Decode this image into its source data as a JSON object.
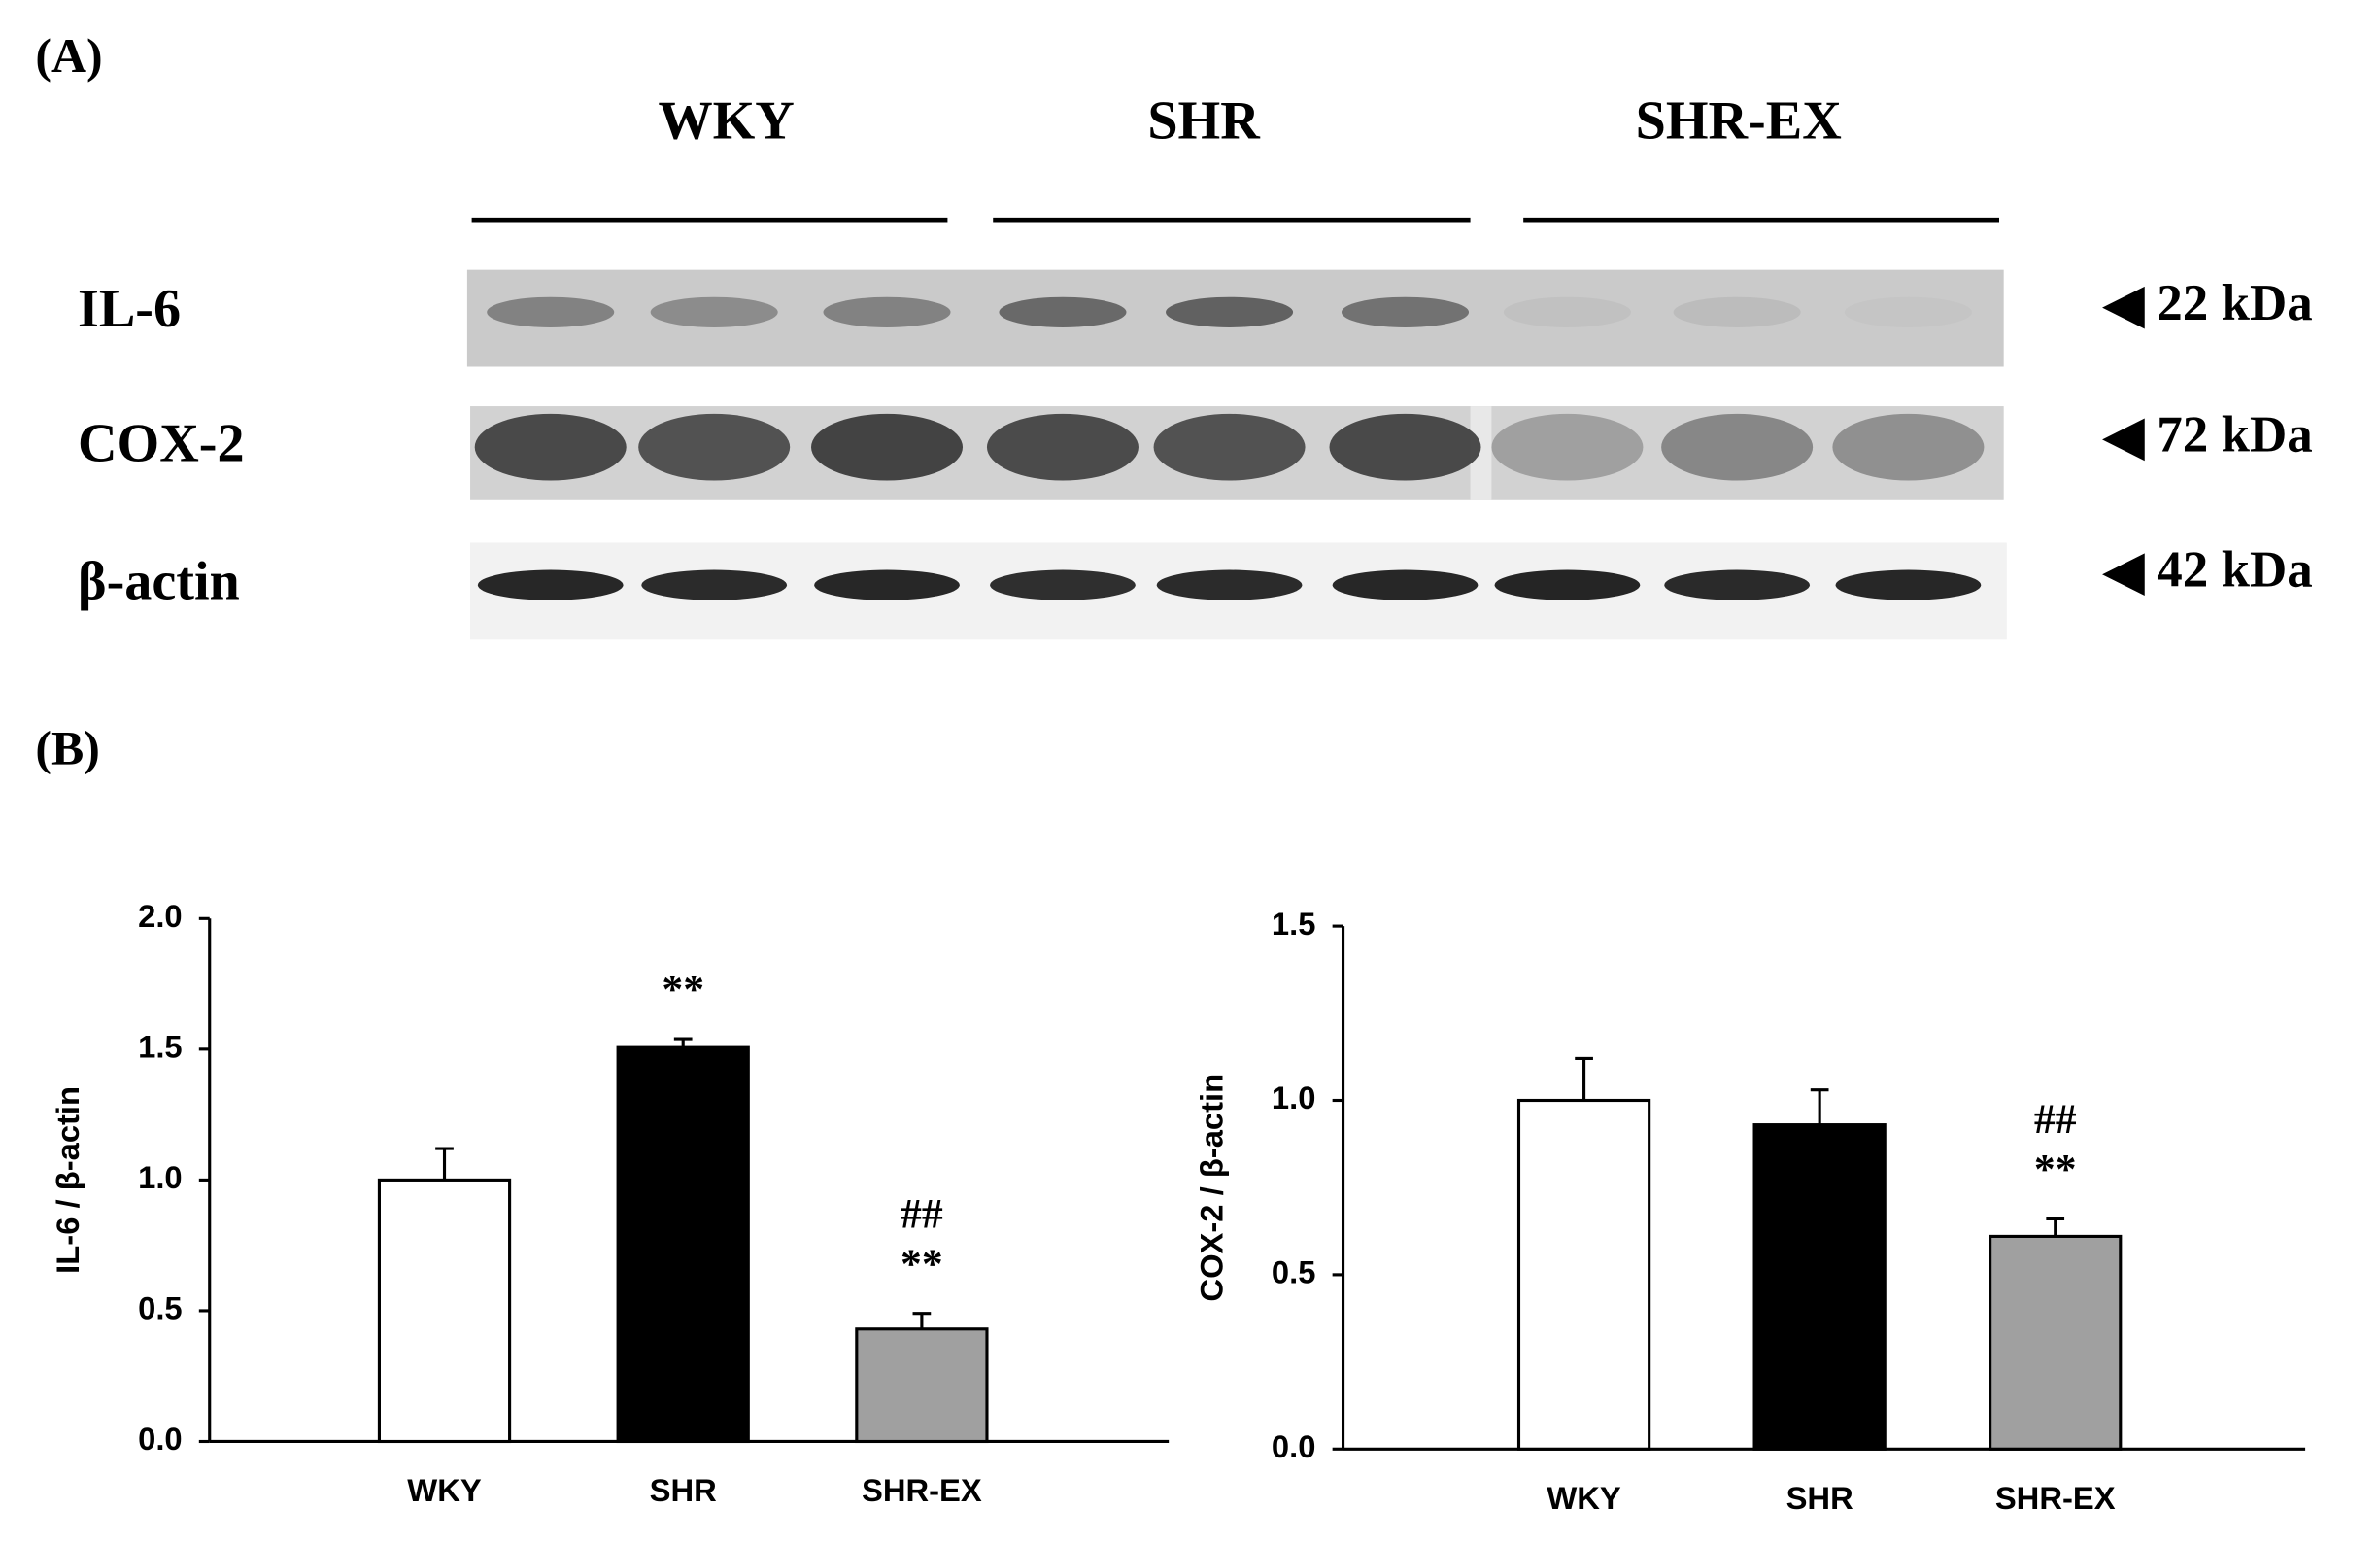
{
  "panel_a": {
    "label": "(A)",
    "groups": [
      "WKY",
      "SHR",
      "SHR-EX"
    ],
    "rows": [
      {
        "name": "IL-6",
        "size": "22 kDa"
      },
      {
        "name": "COX-2",
        "size": "72 kDa"
      },
      {
        "name": "β-actin",
        "size": "42 kDa"
      }
    ]
  },
  "panel_b_label": "(B)",
  "chart_data": [
    {
      "type": "bar",
      "y_label": "IL-6 / β-actin",
      "categories": [
        "WKY",
        "SHR",
        "SHR-EX"
      ],
      "values": [
        1.0,
        1.51,
        0.43
      ],
      "errors": [
        0.12,
        0.03,
        0.06
      ],
      "colors": [
        "#ffffff",
        "#000000",
        "#a0a0a0"
      ],
      "annotations": [
        null,
        [
          "**"
        ],
        [
          "##",
          "**"
        ]
      ],
      "ylim": [
        0,
        2
      ],
      "yticks": [
        {
          "value": 0,
          "label": "0.0"
        },
        0.5,
        {
          "value": 1,
          "label": "1.0"
        },
        1.5,
        {
          "value": 2,
          "label": "2.0"
        }
      ]
    },
    {
      "type": "bar",
      "y_label": "COX-2 / β-actin",
      "categories": [
        "WKY",
        "SHR",
        "SHR-EX"
      ],
      "values": [
        1.0,
        0.93,
        0.61
      ],
      "errors": [
        0.12,
        0.1,
        0.05
      ],
      "colors": [
        "#ffffff",
        "#000000",
        "#a0a0a0"
      ],
      "annotations": [
        null,
        null,
        [
          "##",
          "**"
        ]
      ],
      "ylim": [
        0,
        1.5
      ],
      "yticks": [
        {
          "value": 0,
          "label": "0.0"
        },
        0.5,
        {
          "value": 1,
          "label": "1.0"
        },
        1.5
      ]
    }
  ]
}
